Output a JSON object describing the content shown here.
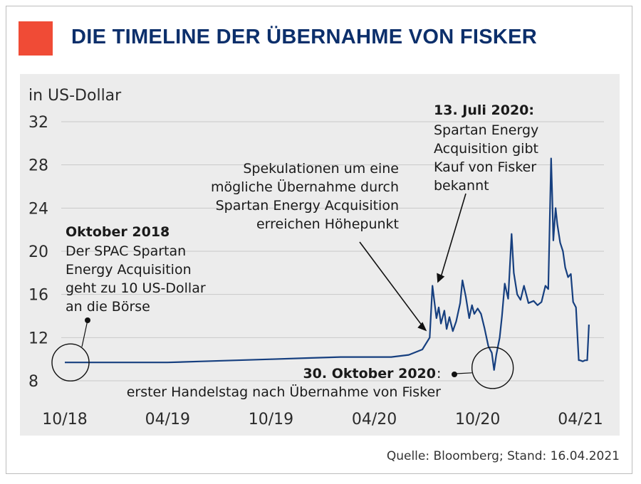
{
  "header": {
    "title": "DIE TIMELINE DER ÜBERNAHME VON FISKER"
  },
  "source": "Quelle: Bloomberg; Stand: 16.04.2021",
  "colors": {
    "accent": "#f04b36",
    "title": "#0c2f6b",
    "line": "#163f7f",
    "background": "#ececec"
  },
  "chart_data": {
    "type": "line",
    "ylabel": "in US-Dollar",
    "ylim": [
      8,
      32
    ],
    "yticks": [
      8,
      12,
      16,
      20,
      24,
      28,
      32
    ],
    "xticks": [
      "10/18",
      "04/19",
      "10/19",
      "04/20",
      "10/20",
      "04/21"
    ],
    "grid": true,
    "series": [
      {
        "x": [
          "2018-10-01",
          "2018-12-01",
          "2019-02-01",
          "2019-04-01",
          "2019-06-01",
          "2019-08-01",
          "2019-10-01",
          "2019-12-01",
          "2020-02-01",
          "2020-04-01",
          "2020-05-01",
          "2020-06-01",
          "2020-06-25",
          "2020-07-08",
          "2020-07-13",
          "2020-07-16",
          "2020-07-20",
          "2020-07-24",
          "2020-07-28",
          "2020-08-03",
          "2020-08-07",
          "2020-08-12",
          "2020-08-18",
          "2020-08-24",
          "2020-08-31",
          "2020-09-04",
          "2020-09-10",
          "2020-09-16",
          "2020-09-21",
          "2020-09-25",
          "2020-10-01",
          "2020-10-07",
          "2020-10-13",
          "2020-10-20",
          "2020-10-26",
          "2020-10-30",
          "2020-11-03",
          "2020-11-09",
          "2020-11-13",
          "2020-11-18",
          "2020-11-24",
          "2020-11-30",
          "2020-12-04",
          "2020-12-10",
          "2020-12-16",
          "2020-12-22",
          "2020-12-30",
          "2021-01-08",
          "2021-01-15",
          "2021-01-22",
          "2021-01-29",
          "2021-02-03",
          "2021-02-08",
          "2021-02-10",
          "2021-02-12",
          "2021-02-16",
          "2021-02-19",
          "2021-02-24",
          "2021-03-01",
          "2021-03-05",
          "2021-03-10",
          "2021-03-15",
          "2021-03-19",
          "2021-03-24",
          "2021-03-29",
          "2021-03-31",
          "2021-04-05",
          "2021-04-09",
          "2021-04-13",
          "2021-04-16"
        ],
        "values": [
          9.7,
          9.7,
          9.7,
          9.7,
          9.8,
          9.9,
          10.0,
          10.1,
          10.2,
          10.2,
          10.2,
          10.4,
          10.9,
          12.0,
          16.8,
          15.5,
          13.8,
          14.8,
          13.3,
          14.5,
          12.8,
          13.9,
          12.6,
          13.5,
          15.2,
          17.3,
          15.8,
          13.8,
          15.0,
          14.2,
          14.7,
          14.2,
          12.9,
          11.2,
          10.6,
          9.0,
          10.4,
          12.0,
          14.0,
          17.0,
          15.6,
          21.6,
          18.0,
          16.0,
          15.5,
          16.8,
          15.2,
          15.4,
          15.0,
          15.3,
          16.8,
          16.5,
          28.6,
          25.0,
          21.0,
          24.0,
          22.5,
          20.8,
          20.0,
          18.5,
          17.6,
          17.9,
          15.3,
          14.8,
          9.9,
          9.9,
          9.8,
          9.9,
          9.9,
          13.2
        ]
      }
    ],
    "annotations": [
      {
        "id": "a1",
        "date": "2018-10-01",
        "value": 9.7,
        "heading": "Oktober 2018",
        "text": "Der SPAC Spartan Energy Acquisition geht zu 10 US-Dollar an die Börse"
      },
      {
        "id": "a2",
        "date": "2020-07-08",
        "value": 12.0,
        "heading": "",
        "text": "Spekulationen um eine mögliche Übernahme durch Spartan Energy Acquisition erreichen Höhepunkt"
      },
      {
        "id": "a3",
        "date": "2020-07-13",
        "value": 16.8,
        "heading": "13. Juli 2020",
        "text": "Spartan Energy Acquisition gibt Kauf von Fisker bekannt"
      },
      {
        "id": "a4",
        "date": "2020-10-30",
        "value": 9.0,
        "heading": "30. Oktober 2020",
        "text": "erster Handelstag nach Übernahme von Fisker"
      }
    ]
  }
}
